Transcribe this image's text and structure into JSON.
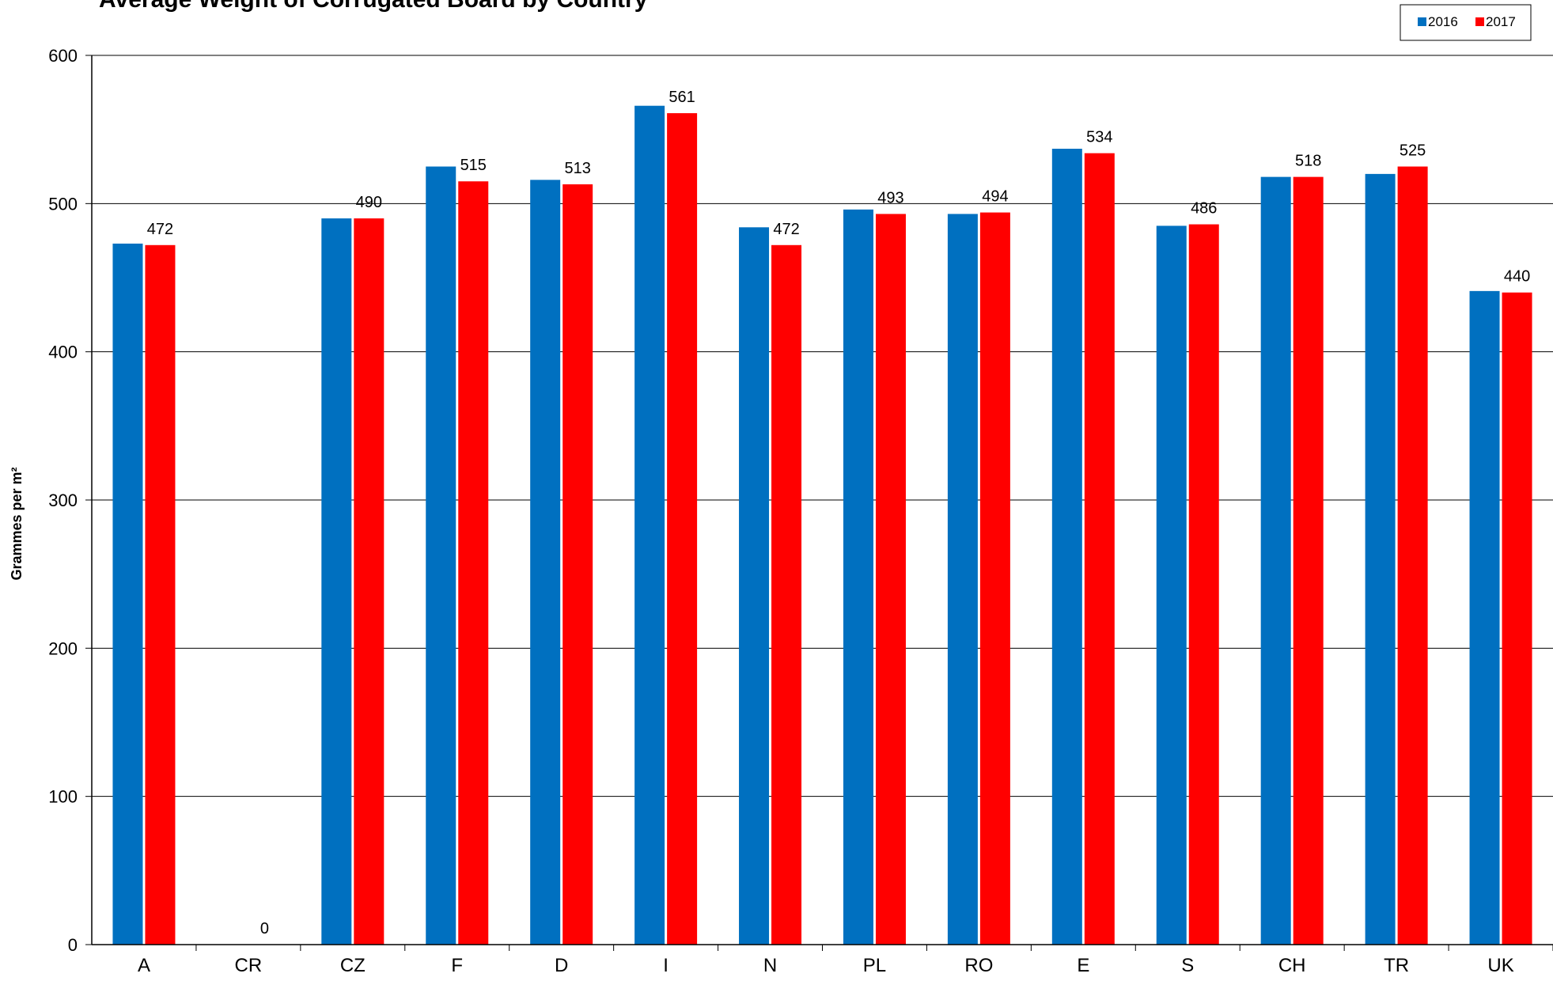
{
  "chart_data": {
    "type": "bar",
    "title": "Average Weight of Corrugated Board by Country",
    "xlabel": "",
    "ylabel": "Grammes per m²",
    "ylim": [
      0,
      600
    ],
    "yticks": [
      0,
      100,
      200,
      300,
      400,
      500,
      600
    ],
    "grid": true,
    "legend_position": "top-right",
    "categories": [
      "A",
      "CR",
      "CZ",
      "F",
      "D",
      "I",
      "N",
      "PL",
      "RO",
      "E",
      "S",
      "CH",
      "TR",
      "UK"
    ],
    "series": [
      {
        "name": "2016",
        "color": "#0070C0",
        "values": [
          473,
          0,
          490,
          525,
          516,
          566,
          484,
          496,
          493,
          537,
          485,
          518,
          520,
          441
        ]
      },
      {
        "name": "2017",
        "color": "#FF0000",
        "values": [
          472,
          0,
          490,
          515,
          513,
          561,
          472,
          493,
          494,
          534,
          486,
          518,
          525,
          440
        ]
      }
    ],
    "data_labels": [
      "472",
      "0",
      "490",
      "515",
      "513",
      "561",
      "472",
      "493",
      "494",
      "534",
      "486",
      "518",
      "525",
      "440"
    ]
  }
}
